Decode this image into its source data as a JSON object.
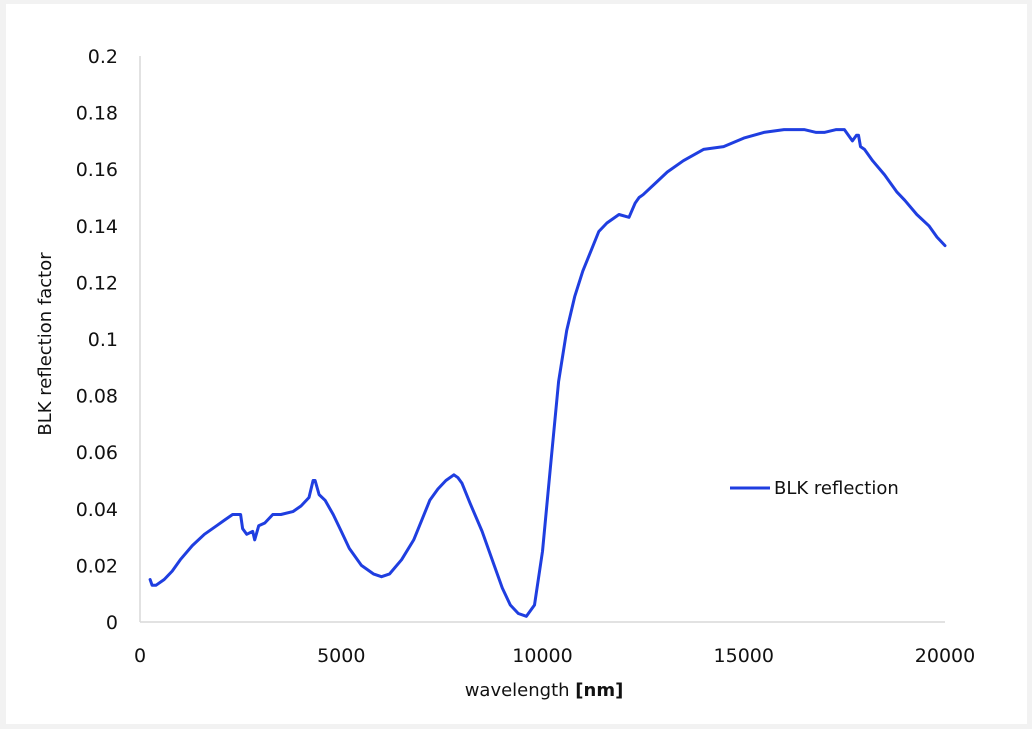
{
  "chart_data": {
    "type": "line",
    "xlabel": "wavelength",
    "xlabel_unit": "[nm]",
    "ylabel": "BLK reflection factor",
    "xlim": [
      0,
      20000
    ],
    "ylim": [
      0,
      0.2
    ],
    "x_ticks": [
      "0",
      "5000",
      "10000",
      "15000",
      "20000"
    ],
    "y_ticks": [
      "0",
      "0.02",
      "0.04",
      "0.06",
      "0.08",
      "0.1",
      "0.12",
      "0.14",
      "0.16",
      "0.18",
      "0.2"
    ],
    "grid": false,
    "legend": "right",
    "series": [
      {
        "name": "BLK reflection",
        "color": "#1f3ee0",
        "x": [
          250,
          300,
          400,
          600,
          800,
          1000,
          1300,
          1600,
          1900,
          2100,
          2300,
          2500,
          2550,
          2650,
          2800,
          2850,
          2950,
          3100,
          3300,
          3500,
          3800,
          4000,
          4200,
          4300,
          4350,
          4450,
          4600,
          4800,
          5000,
          5200,
          5500,
          5800,
          6000,
          6200,
          6500,
          6800,
          7000,
          7200,
          7400,
          7600,
          7800,
          7900,
          8000,
          8200,
          8500,
          8800,
          9000,
          9200,
          9400,
          9600,
          9800,
          10000,
          10200,
          10400,
          10600,
          10800,
          11000,
          11200,
          11400,
          11600,
          11900,
          12150,
          12300,
          12350,
          12400,
          12500,
          12800,
          13100,
          13500,
          14000,
          14500,
          15000,
          15500,
          16000,
          16200,
          16500,
          16800,
          17000,
          17300,
          17500,
          17600,
          17700,
          17800,
          17850,
          17900,
          18000,
          18200,
          18500,
          18800,
          19000,
          19300,
          19600,
          19800,
          20000
        ],
        "y": [
          0.015,
          0.013,
          0.013,
          0.015,
          0.018,
          0.022,
          0.027,
          0.031,
          0.034,
          0.036,
          0.038,
          0.038,
          0.033,
          0.031,
          0.032,
          0.029,
          0.034,
          0.035,
          0.038,
          0.038,
          0.039,
          0.041,
          0.044,
          0.05,
          0.05,
          0.045,
          0.043,
          0.038,
          0.032,
          0.026,
          0.02,
          0.017,
          0.016,
          0.017,
          0.022,
          0.029,
          0.036,
          0.043,
          0.047,
          0.05,
          0.052,
          0.051,
          0.049,
          0.042,
          0.032,
          0.02,
          0.012,
          0.006,
          0.003,
          0.002,
          0.006,
          0.025,
          0.055,
          0.085,
          0.103,
          0.115,
          0.124,
          0.131,
          0.138,
          0.141,
          0.144,
          0.143,
          0.148,
          0.149,
          0.15,
          0.151,
          0.155,
          0.159,
          0.163,
          0.167,
          0.168,
          0.171,
          0.173,
          0.174,
          0.174,
          0.174,
          0.173,
          0.173,
          0.174,
          0.174,
          0.172,
          0.17,
          0.172,
          0.172,
          0.168,
          0.167,
          0.163,
          0.158,
          0.152,
          0.149,
          0.144,
          0.14,
          0.136,
          0.133
        ]
      }
    ]
  }
}
